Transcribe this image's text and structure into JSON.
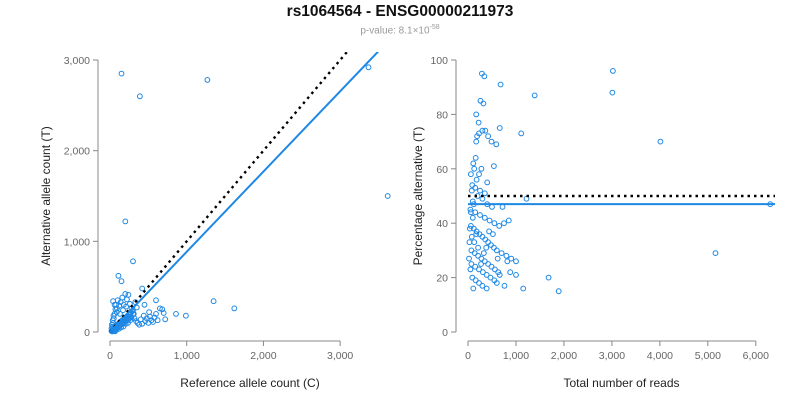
{
  "title": "rs1064564 - ENSG00000211973",
  "subtitle": {
    "prefix": "p-value: 8.1×10",
    "exponent": "-58"
  },
  "colors": {
    "points": "#1e88e5",
    "fit": "#1e88e5",
    "reference": "#000000",
    "axis": "#888888"
  },
  "chart_data": [
    {
      "type": "scatter",
      "name": "left",
      "xlabel": "Reference allele count (C)",
      "ylabel": "Alternative allele count (T)",
      "xlim": [
        0,
        3650
      ],
      "ylim": [
        0,
        3000
      ],
      "xticks": [
        0,
        1000,
        2000,
        3000
      ],
      "xtick_labels": [
        "0",
        "1,000",
        "2,000",
        "3,000"
      ],
      "yticks": [
        0,
        1000,
        2000,
        3000
      ],
      "ytick_labels": [
        "0",
        "1,000",
        "2,000",
        "3,000"
      ],
      "reference_line": {
        "style": "dotted",
        "from": [
          0,
          0
        ],
        "to": [
          3650,
          3650
        ]
      },
      "fit_line": {
        "style": "solid",
        "from": [
          0,
          0
        ],
        "to": [
          3650,
          3230
        ]
      },
      "points": [
        [
          20,
          10
        ],
        [
          30,
          20
        ],
        [
          40,
          30
        ],
        [
          50,
          15
        ],
        [
          60,
          40
        ],
        [
          70,
          60
        ],
        [
          80,
          50
        ],
        [
          90,
          80
        ],
        [
          100,
          70
        ],
        [
          110,
          90
        ],
        [
          120,
          100
        ],
        [
          130,
          110
        ],
        [
          140,
          80
        ],
        [
          150,
          120
        ],
        [
          160,
          130
        ],
        [
          170,
          100
        ],
        [
          180,
          140
        ],
        [
          190,
          150
        ],
        [
          200,
          160
        ],
        [
          210,
          120
        ],
        [
          220,
          170
        ],
        [
          230,
          180
        ],
        [
          240,
          150
        ],
        [
          250,
          200
        ],
        [
          260,
          190
        ],
        [
          270,
          210
        ],
        [
          280,
          160
        ],
        [
          290,
          230
        ],
        [
          300,
          240
        ],
        [
          310,
          200
        ],
        [
          30,
          60
        ],
        [
          40,
          100
        ],
        [
          50,
          150
        ],
        [
          60,
          200
        ],
        [
          70,
          250
        ],
        [
          80,
          300
        ],
        [
          40,
          340
        ],
        [
          90,
          220
        ],
        [
          100,
          350
        ],
        [
          120,
          290
        ],
        [
          140,
          330
        ],
        [
          160,
          380
        ],
        [
          180,
          300
        ],
        [
          200,
          420
        ],
        [
          220,
          360
        ],
        [
          240,
          410
        ],
        [
          260,
          310
        ],
        [
          280,
          260
        ],
        [
          300,
          200
        ],
        [
          320,
          150
        ],
        [
          340,
          120
        ],
        [
          360,
          100
        ],
        [
          380,
          80
        ],
        [
          400,
          140
        ],
        [
          420,
          90
        ],
        [
          440,
          180
        ],
        [
          460,
          120
        ],
        [
          480,
          150
        ],
        [
          500,
          100
        ],
        [
          520,
          170
        ],
        [
          540,
          130
        ],
        [
          560,
          110
        ],
        [
          580,
          160
        ],
        [
          600,
          200
        ],
        [
          620,
          130
        ],
        [
          650,
          260
        ],
        [
          680,
          250
        ],
        [
          700,
          210
        ],
        [
          720,
          140
        ],
        [
          110,
          620
        ],
        [
          150,
          560
        ],
        [
          200,
          1220
        ],
        [
          300,
          780
        ],
        [
          420,
          480
        ],
        [
          450,
          300
        ],
        [
          510,
          220
        ],
        [
          600,
          350
        ],
        [
          860,
          200
        ],
        [
          990,
          180
        ],
        [
          1350,
          340
        ],
        [
          1620,
          260
        ],
        [
          150,
          2850
        ],
        [
          390,
          2600
        ],
        [
          1270,
          2780
        ],
        [
          3370,
          2920
        ],
        [
          3620,
          1500
        ],
        [
          30,
          5
        ],
        [
          45,
          12
        ],
        [
          55,
          25
        ],
        [
          65,
          8
        ],
        [
          75,
          18
        ],
        [
          85,
          30
        ],
        [
          95,
          45
        ],
        [
          105,
          55
        ],
        [
          115,
          35
        ],
        [
          125,
          65
        ],
        [
          135,
          75
        ],
        [
          145,
          50
        ],
        [
          155,
          85
        ],
        [
          165,
          95
        ],
        [
          175,
          60
        ],
        [
          185,
          105
        ],
        [
          195,
          115
        ],
        [
          205,
          90
        ],
        [
          215,
          125
        ],
        [
          225,
          135
        ],
        [
          235,
          100
        ],
        [
          245,
          145
        ],
        [
          255,
          155
        ],
        [
          265,
          130
        ],
        [
          275,
          170
        ],
        [
          20,
          40
        ],
        [
          25,
          80
        ],
        [
          35,
          130
        ],
        [
          45,
          180
        ],
        [
          60,
          300
        ],
        [
          90,
          260
        ],
        [
          130,
          200
        ],
        [
          170,
          240
        ],
        [
          210,
          280
        ],
        [
          330,
          330
        ],
        [
          350,
          270
        ]
      ]
    },
    {
      "type": "scatter",
      "name": "right",
      "xlabel": "Total number of reads",
      "ylabel": "Percentage alternative (T)",
      "xlim": [
        0,
        6400
      ],
      "ylim": [
        0,
        100
      ],
      "xticks": [
        0,
        1000,
        2000,
        3000,
        4000,
        5000,
        6000
      ],
      "xtick_labels": [
        "0",
        "1,000",
        "2,000",
        "3,000",
        "4,000",
        "5,000",
        "6,000"
      ],
      "yticks": [
        0,
        20,
        40,
        60,
        80,
        100
      ],
      "ytick_labels": [
        "0",
        "20",
        "40",
        "60",
        "80",
        "100"
      ],
      "reference_line": {
        "style": "dotted",
        "from": [
          0,
          50
        ],
        "to": [
          6400,
          50
        ]
      },
      "fit_line": {
        "style": "solid",
        "from": [
          0,
          47
        ],
        "to": [
          6400,
          47
        ]
      },
      "points": [
        [
          3020,
          96
        ],
        [
          290,
          95
        ],
        [
          340,
          94
        ],
        [
          260,
          85
        ],
        [
          320,
          84
        ],
        [
          1390,
          87
        ],
        [
          680,
          91
        ],
        [
          3010,
          88
        ],
        [
          4010,
          70
        ],
        [
          220,
          77
        ],
        [
          170,
          80
        ],
        [
          230,
          73
        ],
        [
          300,
          74
        ],
        [
          360,
          74
        ],
        [
          1110,
          73
        ],
        [
          170,
          70
        ],
        [
          190,
          72
        ],
        [
          420,
          72
        ],
        [
          660,
          75
        ],
        [
          490,
          70
        ],
        [
          590,
          69
        ],
        [
          160,
          64
        ],
        [
          280,
          60
        ],
        [
          230,
          58
        ],
        [
          110,
          62
        ],
        [
          130,
          60
        ],
        [
          540,
          61
        ],
        [
          60,
          58
        ],
        [
          180,
          56
        ],
        [
          400,
          55
        ],
        [
          90,
          54
        ],
        [
          150,
          53
        ],
        [
          250,
          52
        ],
        [
          350,
          51
        ],
        [
          80,
          52
        ],
        [
          200,
          50
        ],
        [
          300,
          49
        ],
        [
          100,
          48
        ],
        [
          400,
          47
        ],
        [
          500,
          46
        ],
        [
          50,
          45
        ],
        [
          150,
          44
        ],
        [
          250,
          43
        ],
        [
          350,
          42
        ],
        [
          450,
          41
        ],
        [
          550,
          40
        ],
        [
          650,
          39
        ],
        [
          750,
          40
        ],
        [
          850,
          41
        ],
        [
          60,
          39
        ],
        [
          120,
          38
        ],
        [
          180,
          37
        ],
        [
          240,
          36
        ],
        [
          300,
          35
        ],
        [
          360,
          34
        ],
        [
          420,
          33
        ],
        [
          480,
          32
        ],
        [
          540,
          31
        ],
        [
          600,
          30
        ],
        [
          700,
          29
        ],
        [
          800,
          28
        ],
        [
          900,
          27
        ],
        [
          1000,
          26
        ],
        [
          70,
          30
        ],
        [
          140,
          29
        ],
        [
          210,
          28
        ],
        [
          280,
          27
        ],
        [
          350,
          26
        ],
        [
          420,
          25
        ],
        [
          490,
          24
        ],
        [
          560,
          23
        ],
        [
          630,
          22
        ],
        [
          70,
          25
        ],
        [
          150,
          24
        ],
        [
          230,
          23
        ],
        [
          310,
          22
        ],
        [
          390,
          21
        ],
        [
          470,
          20
        ],
        [
          550,
          19
        ],
        [
          90,
          20
        ],
        [
          160,
          19
        ],
        [
          230,
          18
        ],
        [
          300,
          17
        ],
        [
          390,
          16
        ],
        [
          110,
          16
        ],
        [
          600,
          18
        ],
        [
          760,
          17
        ],
        [
          1000,
          21
        ],
        [
          1150,
          16
        ],
        [
          1680,
          20
        ],
        [
          1890,
          15
        ],
        [
          5160,
          29
        ],
        [
          6300,
          47
        ],
        [
          1220,
          49
        ],
        [
          720,
          46
        ],
        [
          820,
          26
        ],
        [
          880,
          22
        ],
        [
          80,
          35
        ],
        [
          100,
          42
        ],
        [
          120,
          47
        ],
        [
          60,
          44
        ],
        [
          40,
          38
        ],
        [
          30,
          33
        ],
        [
          20,
          27
        ],
        [
          50,
          23
        ],
        [
          130,
          33
        ],
        [
          170,
          36
        ],
        [
          210,
          31
        ],
        [
          270,
          25
        ],
        [
          330,
          29
        ],
        [
          380,
          31
        ],
        [
          440,
          37
        ],
        [
          520,
          36
        ],
        [
          620,
          27
        ],
        [
          660,
          21
        ]
      ]
    }
  ]
}
